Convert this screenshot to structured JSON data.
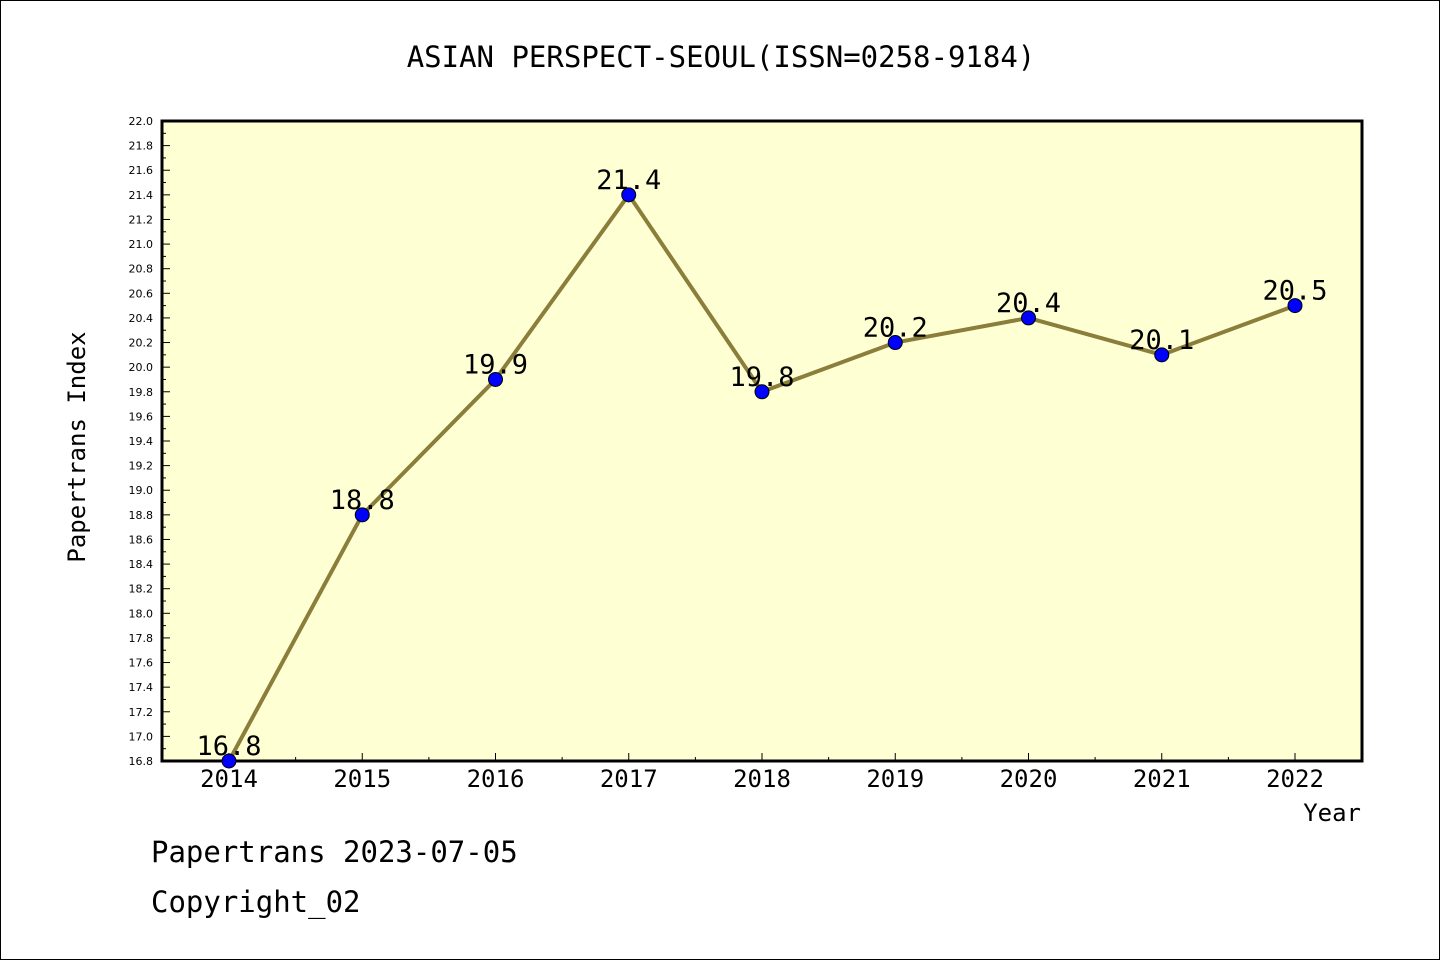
{
  "chart_data": {
    "type": "line",
    "title": "ASIAN PERSPECT-SEOUL(ISSN=0258-9184)",
    "xlabel": "Year",
    "ylabel": "Papertrans Index",
    "categories": [
      "2014",
      "2015",
      "2016",
      "2017",
      "2018",
      "2019",
      "2020",
      "2021",
      "2022"
    ],
    "series": [
      {
        "values": [
          16.8,
          18.8,
          19.9,
          21.4,
          19.8,
          20.2,
          20.4,
          20.1,
          20.5
        ],
        "data_labels": [
          "16.8",
          "18.8",
          "19.9",
          "21.4",
          "19.8",
          "20.2",
          "20.4",
          "20.1",
          "20.5"
        ]
      }
    ],
    "ylim": [
      16.8,
      22.0
    ],
    "yticks": [
      "16.8",
      "17.0",
      "17.2",
      "17.4",
      "17.6",
      "17.8",
      "18.0",
      "18.2",
      "18.4",
      "18.6",
      "18.8",
      "19.0",
      "19.2",
      "19.4",
      "19.6",
      "19.8",
      "20.0",
      "20.2",
      "20.4",
      "20.6",
      "20.8",
      "21.0",
      "21.2",
      "21.4",
      "21.6",
      "21.8",
      "22.0"
    ],
    "grid": false,
    "colors": {
      "plot_background": "#ffffd4",
      "line": "#8b7d3a",
      "marker": "#0000ff"
    }
  },
  "footer": {
    "line1": "Papertrans 2023-07-05",
    "line2": "Copyright_02"
  }
}
